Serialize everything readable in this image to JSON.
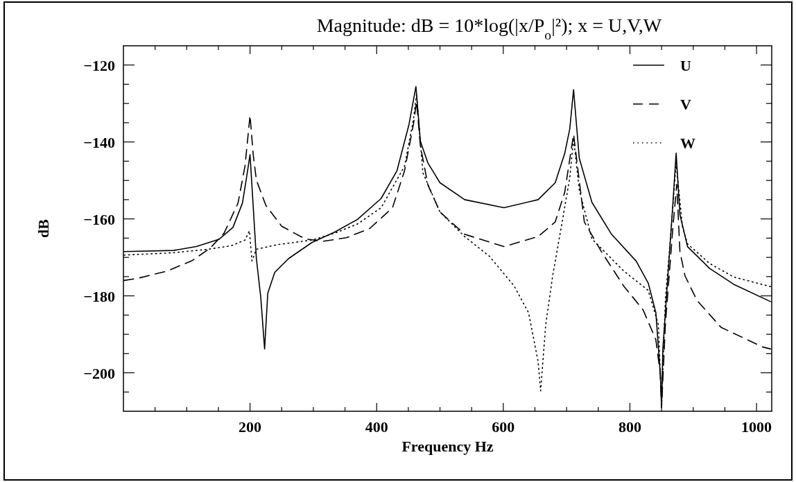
{
  "chart_data": {
    "type": "line",
    "title": "Magnitude: dB = 10*log(|x/P$_{o}$|²); x = U,V,W",
    "xlabel": "Frequency Hz",
    "ylabel": "dB",
    "xlim": [
      0,
      1024
    ],
    "ylim": [
      -210,
      -115
    ],
    "xticks": [
      {
        "value": 50,
        "label": null
      },
      {
        "value": 100,
        "label": null
      },
      {
        "value": 150,
        "label": null
      },
      200,
      {
        "value": 250,
        "label": null
      },
      {
        "value": 300,
        "label": null
      },
      {
        "value": 350,
        "label": null
      },
      400,
      {
        "value": 450,
        "label": null
      },
      {
        "value": 500,
        "label": null
      },
      {
        "value": 550,
        "label": null
      },
      600,
      {
        "value": 650,
        "label": null
      },
      {
        "value": 700,
        "label": null
      },
      {
        "value": 750,
        "label": null
      },
      800,
      {
        "value": 850,
        "label": null
      },
      {
        "value": 900,
        "label": null
      },
      {
        "value": 950,
        "label": null
      },
      1000
    ],
    "yticks": [
      -200,
      {
        "value": -205,
        "label": null
      },
      {
        "value": -195,
        "label": null
      },
      {
        "value": -190,
        "label": null
      },
      {
        "value": -185,
        "label": null
      },
      -180,
      {
        "value": -175,
        "label": null
      },
      {
        "value": -170,
        "label": null
      },
      {
        "value": -165,
        "label": null
      },
      -160,
      {
        "value": -155,
        "label": null
      },
      {
        "value": -150,
        "label": null
      },
      {
        "value": -145,
        "label": null
      },
      -140,
      {
        "value": -135,
        "label": null
      },
      {
        "value": -130,
        "label": null
      },
      {
        "value": -125,
        "label": null
      },
      -120
    ],
    "grid": false,
    "legend": "top right",
    "marker": "none",
    "series": [
      {
        "name": "U",
        "color": "#000000",
        "line_style": "solid",
        "x": [
          1,
          79,
          115,
          151,
          173,
          188,
          195,
          200,
          210,
          217,
          223,
          228,
          239,
          261,
          298,
          334,
          370,
          407,
          432,
          451,
          462,
          469,
          481,
          500,
          539,
          601,
          655,
          682,
          697,
          705,
          711,
          720,
          740,
          771,
          810,
          829,
          841,
          848,
          850,
          852,
          860,
          868,
          873,
          879,
          891,
          926,
          964,
          1022
        ],
        "values": [
          -168.5,
          -168.2,
          -167.2,
          -165.3,
          -162.2,
          -155.9,
          -148.7,
          -143.3,
          -170.3,
          -180.5,
          -193.8,
          -179.3,
          -173.9,
          -170.3,
          -166.1,
          -163.4,
          -160.1,
          -154.7,
          -147.5,
          -135.5,
          -125.6,
          -139.8,
          -145.5,
          -150.6,
          -155,
          -157.1,
          -155,
          -150.6,
          -143,
          -136.6,
          -126.4,
          -144.2,
          -155.7,
          -164,
          -171,
          -176.7,
          -184.4,
          -200.3,
          -209,
          -193.9,
          -174.8,
          -155.7,
          -142.9,
          -158.9,
          -167.2,
          -172.9,
          -177,
          -181.5
        ]
      },
      {
        "name": "V",
        "color": "#000000",
        "line_style": "dashed",
        "x": [
          1,
          24,
          68,
          108,
          137,
          159,
          181,
          192,
          200,
          205,
          210,
          225,
          250,
          287,
          316,
          352,
          389,
          425,
          444,
          458,
          463,
          469,
          481,
          500,
          539,
          601,
          655,
          682,
          697,
          711,
          728,
          755,
          790,
          821,
          841,
          848,
          850,
          856,
          868,
          874,
          879,
          887,
          906,
          944,
          1010,
          1022
        ],
        "values": [
          -176,
          -175.4,
          -173.6,
          -170.9,
          -167.6,
          -163.7,
          -155.9,
          -146.3,
          -133.1,
          -143.3,
          -149.9,
          -156.5,
          -161.9,
          -165.2,
          -165.8,
          -164.9,
          -162.5,
          -157.1,
          -147.5,
          -135.5,
          -129.5,
          -141,
          -151.2,
          -158.2,
          -164,
          -167.2,
          -164.6,
          -160.8,
          -153.1,
          -138,
          -160.8,
          -168.5,
          -177.4,
          -183.7,
          -191.4,
          -200.3,
          -209,
          -187.5,
          -162,
          -151,
          -168.5,
          -174.8,
          -181.2,
          -188.2,
          -193.3,
          -193.8
        ]
      },
      {
        "name": "W",
        "color": "#000000",
        "line_style": "dotted",
        "x": [
          1,
          79,
          133,
          170,
          192,
          199,
          203,
          210,
          243,
          298,
          334,
          370,
          407,
          444,
          458,
          463,
          473,
          500,
          539,
          578,
          617,
          640,
          655,
          659,
          667,
          678,
          693,
          705,
          711,
          720,
          740,
          790,
          829,
          845,
          848,
          850,
          856,
          864,
          873,
          883,
          891,
          926,
          964,
          1022
        ],
        "values": [
          -169.4,
          -168.8,
          -167.9,
          -167,
          -165.5,
          -163.1,
          -170.9,
          -167.9,
          -166.7,
          -165.5,
          -163.7,
          -161.3,
          -157.1,
          -146.3,
          -134.3,
          -127.5,
          -148,
          -158.2,
          -164.6,
          -169.7,
          -177.4,
          -184.4,
          -197.1,
          -204.7,
          -187.5,
          -174.8,
          -160.8,
          -149.3,
          -139,
          -152.5,
          -165.2,
          -173.5,
          -178.6,
          -187.5,
          -200,
          -209,
          -181,
          -165.2,
          -145.5,
          -162,
          -166.5,
          -171.6,
          -175.1,
          -177.6
        ]
      }
    ]
  }
}
